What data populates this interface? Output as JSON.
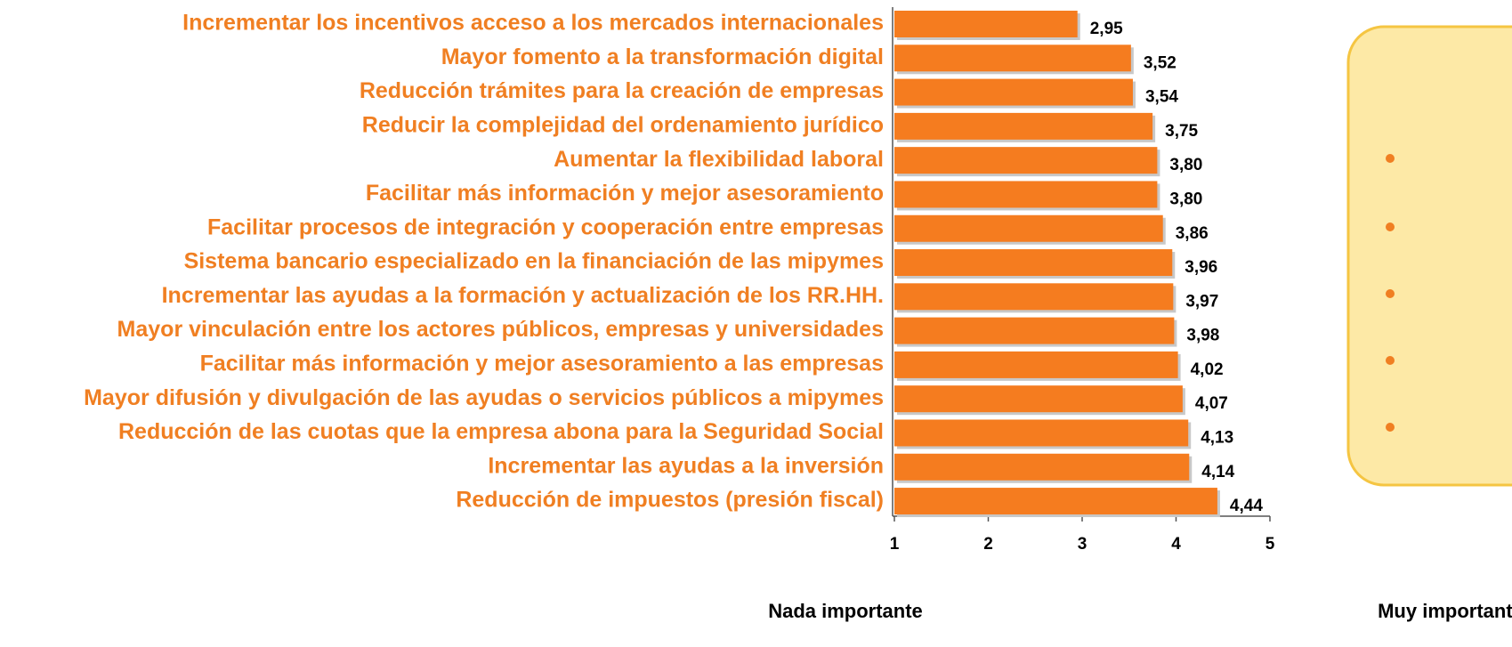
{
  "chart_data": {
    "type": "bar",
    "orientation": "horizontal",
    "categories": [
      "Incrementar los incentivos acceso a los mercados internacionales",
      "Mayor fomento a la transformación digital",
      "Reducción trámites para la creación de empresas",
      "Reducir la complejidad del ordenamiento jurídico",
      "Aumentar la flexibilidad laboral",
      "Facilitar más información y mejor asesoramiento",
      "Facilitar procesos de integración y cooperación entre empresas",
      "Sistema bancario especializado en la financiación de las mipymes",
      "Incrementar las ayudas a la formación y actualización de los RR.HH.",
      "Mayor vinculación entre los actores públicos, empresas y universidades",
      "Facilitar más información y mejor asesoramiento a las empresas",
      "Mayor difusión y divulgación de las ayudas o servicios públicos a mipymes",
      "Reducción de las cuotas que la empresa abona para la Seguridad Social",
      "Incrementar las ayudas a la inversión",
      "Reducción de impuestos (presión fiscal)"
    ],
    "values": [
      2.95,
      3.52,
      3.54,
      3.75,
      3.8,
      3.8,
      3.86,
      3.96,
      3.97,
      3.98,
      4.02,
      4.07,
      4.13,
      4.14,
      4.44
    ],
    "value_labels": [
      "2,95",
      "3,52",
      "3,54",
      "3,75",
      "3,80",
      "3,80",
      "3,86",
      "3,96",
      "3,97",
      "3,98",
      "4,02",
      "4,07",
      "4,13",
      "4,14",
      "4,44"
    ],
    "color": "#f57c1f",
    "xlim": [
      1,
      5
    ],
    "xticks": [
      1,
      2,
      3,
      4,
      5
    ],
    "annotations": [
      "Nada importante",
      "Muy importante"
    ]
  }
}
